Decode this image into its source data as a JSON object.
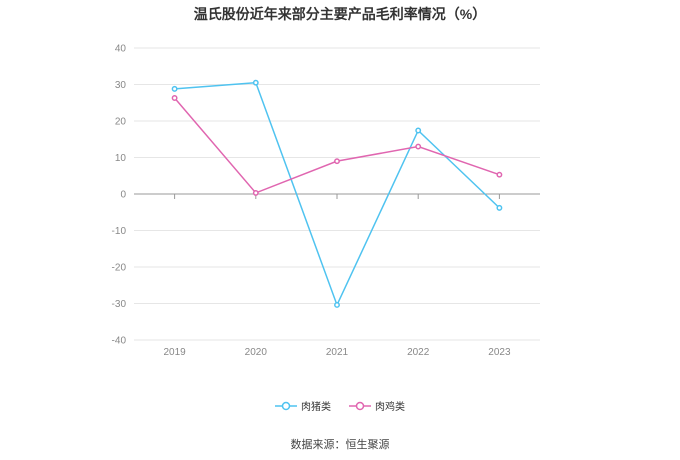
{
  "title": "温氏股份近年来部分主要产品毛利率情况（%）",
  "source": "数据来源：恒生聚源",
  "chart_data": {
    "type": "line",
    "title": "温氏股份近年来部分主要产品毛利率情况（%）",
    "xlabel": "",
    "ylabel": "",
    "categories": [
      "2019",
      "2020",
      "2021",
      "2022",
      "2023"
    ],
    "ylim": [
      -40,
      40
    ],
    "yticks": [
      40,
      30,
      20,
      10,
      0,
      -10,
      -20,
      -30,
      -40
    ],
    "grid": true,
    "legend_position": "bottom-center",
    "series": [
      {
        "name": "肉猪类",
        "color": "#4fc3f0",
        "values": [
          28.8,
          30.5,
          -30.4,
          17.4,
          -3.8
        ]
      },
      {
        "name": "肉鸡类",
        "color": "#e066b0",
        "values": [
          26.3,
          0.3,
          9.0,
          13.0,
          5.3
        ]
      }
    ]
  }
}
